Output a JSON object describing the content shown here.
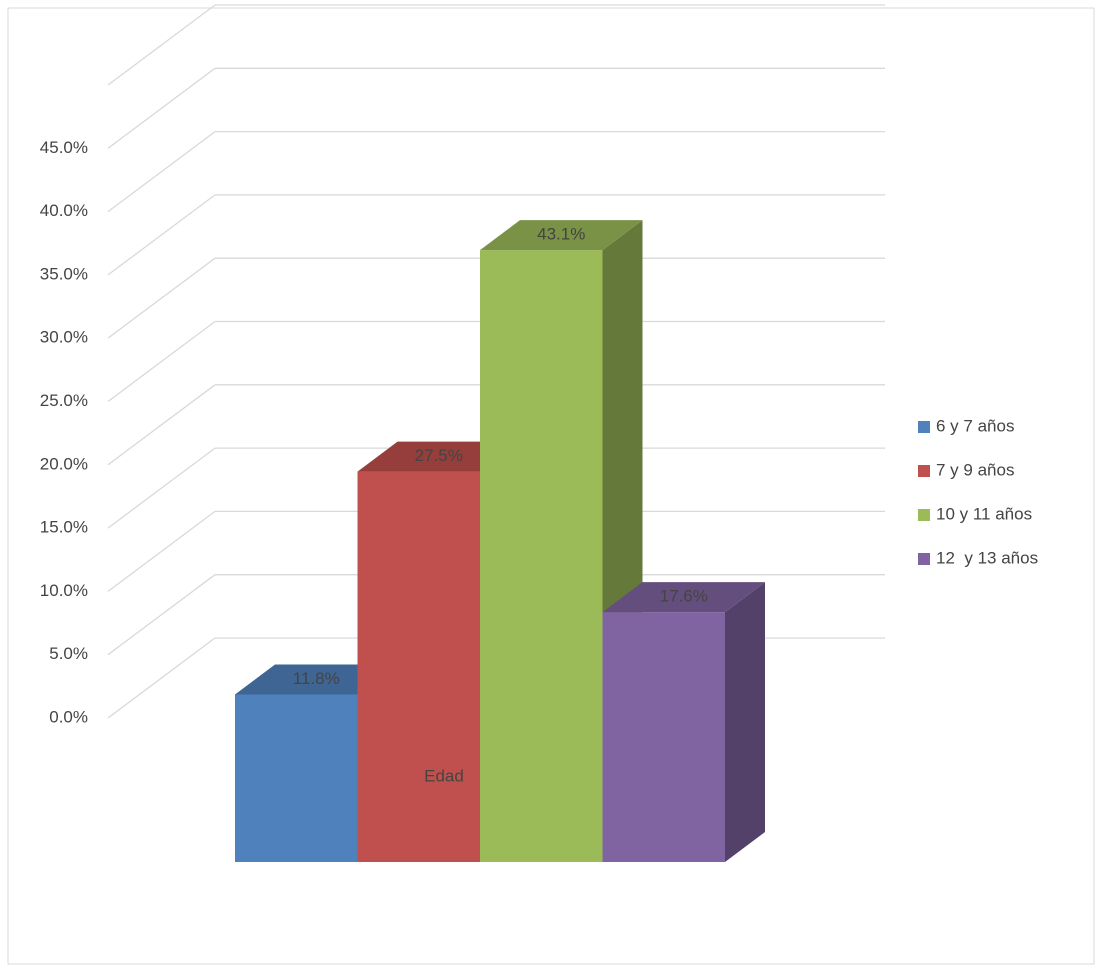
{
  "chart_data": {
    "type": "bar3d",
    "categories": [
      "Edad"
    ],
    "series": [
      {
        "name": "6 y 7 años",
        "color": "#4f81bd",
        "values": [
          11.8
        ],
        "value_labels": [
          "11.8%"
        ]
      },
      {
        "name": "7 y 9 años",
        "color": "#c0504d",
        "values": [
          27.5
        ],
        "value_labels": [
          "27.5%"
        ]
      },
      {
        "name": "10 y 11 años",
        "color": "#9bbb59",
        "values": [
          43.1
        ],
        "value_labels": [
          "43.1%"
        ]
      },
      {
        "name": "12  y 13 años",
        "color": "#8064a2",
        "values": [
          17.6
        ],
        "value_labels": [
          "17.6%"
        ]
      }
    ],
    "ylim": [
      0,
      50
    ],
    "yticks": [
      {
        "value": 0,
        "label": "0.0%"
      },
      {
        "value": 5,
        "label": "5.0%"
      },
      {
        "value": 10,
        "label": "10.0%"
      },
      {
        "value": 15,
        "label": "15.0%"
      },
      {
        "value": 20,
        "label": "20.0%"
      },
      {
        "value": 25,
        "label": "25.0%"
      },
      {
        "value": 30,
        "label": "30.0%"
      },
      {
        "value": 35,
        "label": "35.0%"
      },
      {
        "value": 40,
        "label": "40.0%"
      },
      {
        "value": 45,
        "label": "45.0%"
      }
    ],
    "grid": true,
    "legend": "right"
  }
}
